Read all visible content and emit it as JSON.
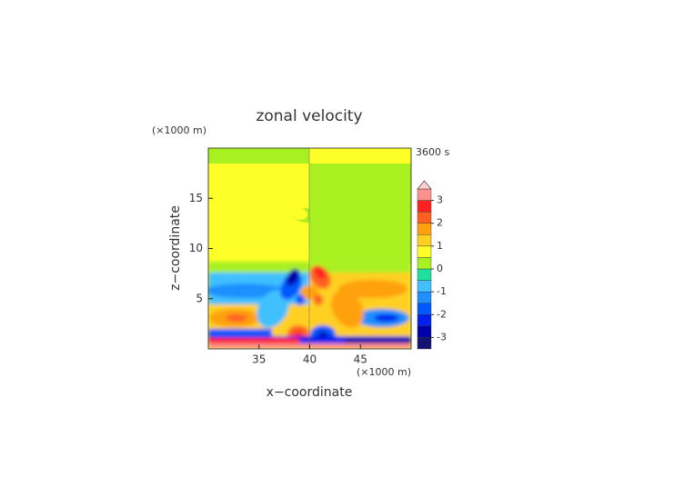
{
  "chart_data": {
    "type": "contour",
    "title": "zonal velocity",
    "time_label": "3600 s",
    "xlabel": "x−coordinate",
    "ylabel": "z−coordinate",
    "x_unit": "(×1000 m)",
    "y_unit": "(×1000 m)",
    "xlim": [
      30,
      50
    ],
    "xticks": [
      35,
      40,
      45
    ],
    "ylim": [
      0,
      20
    ],
    "yticks": [
      5,
      10,
      15
    ],
    "colorbar": {
      "levels": [
        -3.5,
        -3,
        -2.5,
        -2,
        -1.5,
        -1,
        -0.5,
        0,
        0.5,
        1,
        1.5,
        2,
        2.5,
        3,
        3.5
      ],
      "colors": [
        "#141470",
        "#0000a8",
        "#0020f0",
        "#0058ff",
        "#1e90ff",
        "#40c0ff",
        "#20e0a0",
        "#a8f020",
        "#ffff28",
        "#ffd020",
        "#ffa010",
        "#ff6020",
        "#ff2020",
        "#ff9090"
      ],
      "extend_color": "#ffd0d0",
      "ticks": [
        -3,
        -2,
        -1,
        0,
        1,
        2,
        3
      ]
    }
  }
}
